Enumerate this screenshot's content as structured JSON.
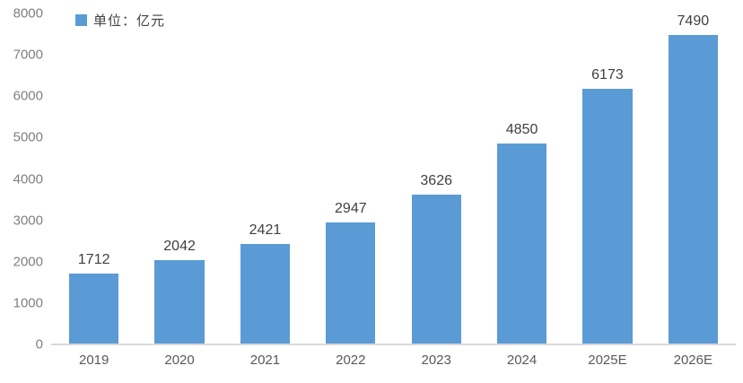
{
  "chart_data": {
    "type": "bar",
    "title": "",
    "legend": "单位：亿元",
    "legend_position": "top-left",
    "categories": [
      "2019",
      "2020",
      "2021",
      "2022",
      "2023",
      "2024",
      "2025E",
      "2026E"
    ],
    "values": [
      1712,
      2042,
      2421,
      2947,
      3626,
      4850,
      6173,
      7490
    ],
    "xlabel": "",
    "ylabel": "",
    "ylim": [
      0,
      8000
    ],
    "yticks": [
      0,
      1000,
      2000,
      3000,
      4000,
      5000,
      6000,
      7000,
      8000
    ],
    "grid": false,
    "colors": {
      "bar": "#5b9bd5",
      "value_label": "#404040",
      "y_tick_label": "#7f7f7f",
      "x_tick_label": "#595959",
      "baseline": "#d9d9d9",
      "background": "#ffffff"
    }
  }
}
